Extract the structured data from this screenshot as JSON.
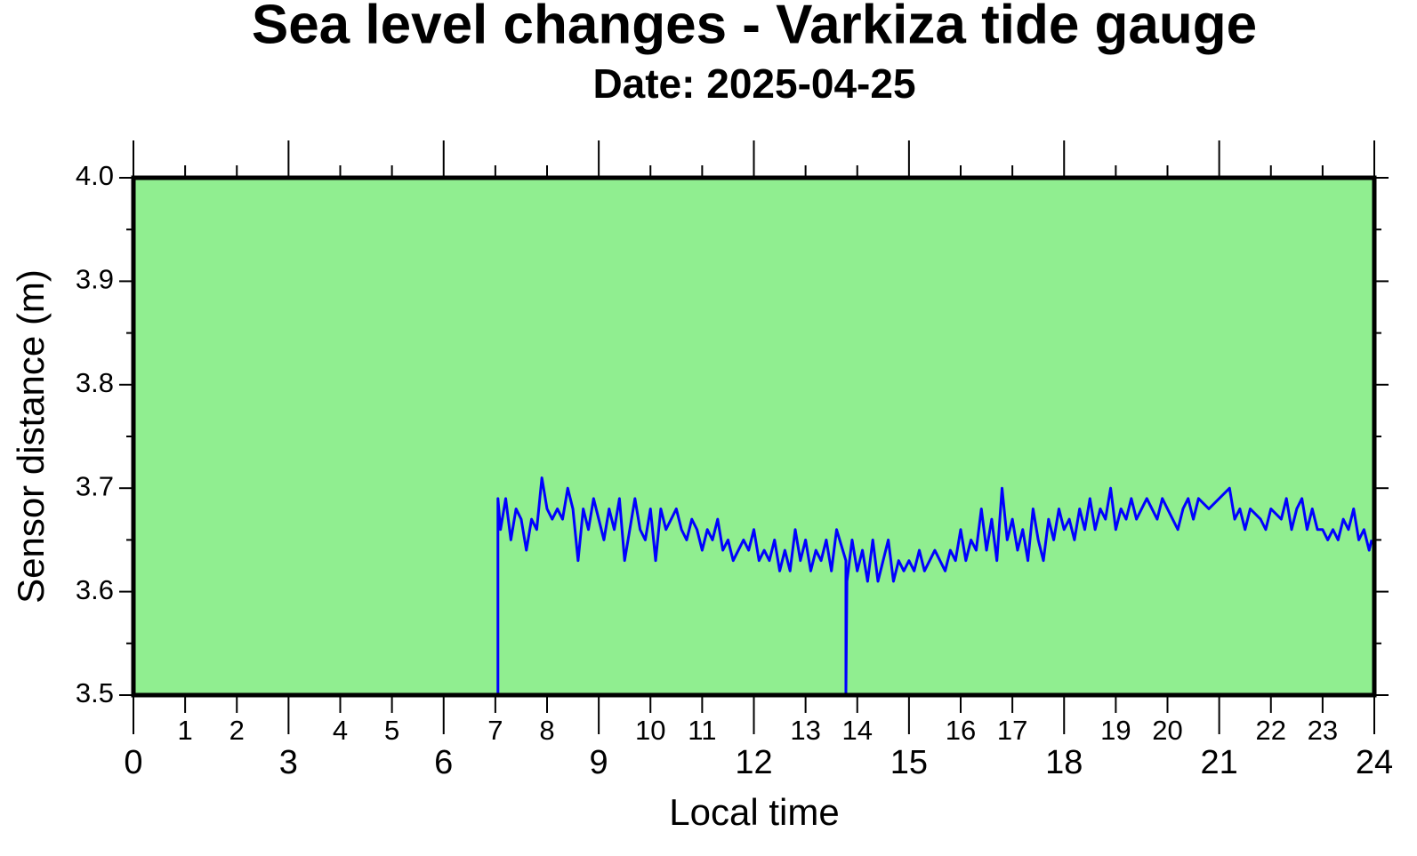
{
  "chart_data": {
    "type": "line",
    "title": "Sea level changes - Varkiza tide gauge",
    "subtitle": "Date: 2025-04-25",
    "xlabel": "Local time",
    "ylabel": "Sensor distance (m)",
    "xlim": [
      0,
      24
    ],
    "ylim": [
      3.5,
      4.0
    ],
    "xticks": [
      0,
      3,
      6,
      9,
      12,
      15,
      18,
      21,
      24
    ],
    "xminorticks": [
      1,
      2,
      4,
      5,
      7,
      8,
      10,
      11,
      13,
      14,
      16,
      17,
      19,
      20,
      22,
      23
    ],
    "yticks": [
      3.5,
      3.6,
      3.7,
      3.8,
      3.9,
      {
        "value": 4,
        "label": "4.0"
      }
    ],
    "yminorticks": [
      3.55,
      3.65,
      3.75,
      3.85,
      3.95
    ],
    "background": "#90ee90",
    "series": [
      {
        "color": "#0000ff",
        "x": [
          7.05,
          7.05,
          7.1,
          7.2,
          7.3,
          7.4,
          7.5,
          7.6,
          7.7,
          7.8,
          7.9,
          8.0,
          8.1,
          8.2,
          8.3,
          8.4,
          8.5,
          8.6,
          8.7,
          8.8,
          8.9,
          9.0,
          9.1,
          9.2,
          9.3,
          9.4,
          9.5,
          9.6,
          9.7,
          9.8,
          9.9,
          10.0,
          10.1,
          10.2,
          10.3,
          10.4,
          10.5,
          10.6,
          10.7,
          10.8,
          10.9,
          11.0,
          11.1,
          11.2,
          11.3,
          11.4,
          11.5,
          11.6,
          11.7,
          11.8,
          11.9,
          12.0,
          12.1,
          12.2,
          12.3,
          12.4,
          12.5,
          12.6,
          12.7,
          12.8,
          12.9,
          13.0,
          13.1,
          13.2,
          13.3,
          13.4,
          13.5,
          13.6,
          13.78,
          13.78,
          13.8,
          13.9,
          14.0,
          14.1,
          14.2,
          14.3,
          14.4,
          14.5,
          14.6,
          14.7,
          14.8,
          14.9,
          15.0,
          15.1,
          15.2,
          15.3,
          15.4,
          15.5,
          15.6,
          15.7,
          15.8,
          15.9,
          16.0,
          16.1,
          16.2,
          16.3,
          16.4,
          16.5,
          16.6,
          16.7,
          16.8,
          16.9,
          17.0,
          17.1,
          17.2,
          17.3,
          17.4,
          17.5,
          17.6,
          17.7,
          17.8,
          17.9,
          18.0,
          18.1,
          18.2,
          18.3,
          18.4,
          18.5,
          18.6,
          18.7,
          18.8,
          18.9,
          19.0,
          19.1,
          19.2,
          19.3,
          19.4,
          19.5,
          19.6,
          19.7,
          19.8,
          19.9,
          20.0,
          20.2,
          20.3,
          20.4,
          20.5,
          20.6,
          20.8,
          21.0,
          21.2,
          21.3,
          21.4,
          21.5,
          21.6,
          21.8,
          21.9,
          22.0,
          22.2,
          22.3,
          22.4,
          22.5,
          22.6,
          22.7,
          22.8,
          22.9,
          23.0,
          23.1,
          23.2,
          23.3,
          23.4,
          23.5,
          23.6,
          23.7,
          23.8,
          23.9,
          23.95
        ],
        "values": [
          3.5,
          3.69,
          3.66,
          3.69,
          3.65,
          3.68,
          3.67,
          3.64,
          3.67,
          3.66,
          3.71,
          3.68,
          3.67,
          3.68,
          3.67,
          3.7,
          3.68,
          3.63,
          3.68,
          3.66,
          3.69,
          3.67,
          3.65,
          3.68,
          3.66,
          3.69,
          3.63,
          3.66,
          3.69,
          3.66,
          3.65,
          3.68,
          3.63,
          3.68,
          3.66,
          3.67,
          3.68,
          3.66,
          3.65,
          3.67,
          3.66,
          3.64,
          3.66,
          3.65,
          3.67,
          3.64,
          3.65,
          3.63,
          3.64,
          3.65,
          3.64,
          3.66,
          3.63,
          3.64,
          3.63,
          3.65,
          3.62,
          3.64,
          3.62,
          3.66,
          3.63,
          3.65,
          3.62,
          3.64,
          3.63,
          3.65,
          3.62,
          3.66,
          3.63,
          3.5,
          3.61,
          3.65,
          3.62,
          3.64,
          3.61,
          3.65,
          3.61,
          3.63,
          3.65,
          3.61,
          3.63,
          3.62,
          3.63,
          3.62,
          3.64,
          3.62,
          3.63,
          3.64,
          3.63,
          3.62,
          3.64,
          3.63,
          3.66,
          3.63,
          3.65,
          3.64,
          3.68,
          3.64,
          3.67,
          3.63,
          3.7,
          3.65,
          3.67,
          3.64,
          3.66,
          3.63,
          3.68,
          3.65,
          3.63,
          3.67,
          3.65,
          3.68,
          3.66,
          3.67,
          3.65,
          3.68,
          3.66,
          3.69,
          3.66,
          3.68,
          3.67,
          3.7,
          3.66,
          3.68,
          3.67,
          3.69,
          3.67,
          3.68,
          3.69,
          3.68,
          3.67,
          3.69,
          3.68,
          3.66,
          3.68,
          3.69,
          3.67,
          3.69,
          3.68,
          3.69,
          3.7,
          3.67,
          3.68,
          3.66,
          3.68,
          3.67,
          3.66,
          3.68,
          3.67,
          3.69,
          3.66,
          3.68,
          3.69,
          3.66,
          3.68,
          3.66,
          3.66,
          3.65,
          3.66,
          3.65,
          3.67,
          3.66,
          3.68,
          3.65,
          3.66,
          3.64,
          3.65
        ]
      }
    ]
  }
}
